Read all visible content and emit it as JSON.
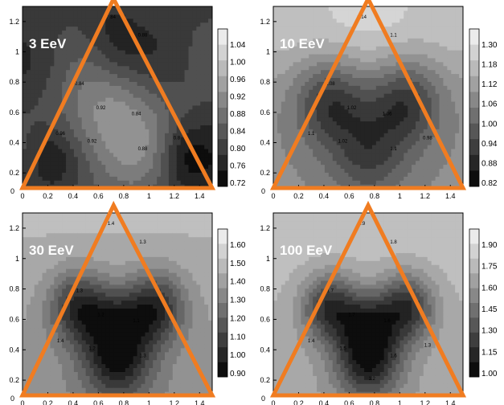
{
  "chart_data": [
    {
      "type": "heatmap",
      "label": "3 EeV",
      "xlim": [
        0,
        1.5
      ],
      "ylim": [
        0.1,
        1.3
      ],
      "xticks": [
        "0",
        "0.2",
        "0.4",
        "0.6",
        "0.8",
        "1",
        "1.2",
        "1.4"
      ],
      "yticks": [
        "0.2",
        "0.4",
        "0.6",
        "0.8",
        "1",
        "1.2"
      ],
      "colorbar_ticks": [
        "1.04",
        "1.00",
        "0.96",
        "0.92",
        "0.88",
        "0.84",
        "0.80",
        "0.76",
        "0.72"
      ],
      "colorbar_levels": 10,
      "contour_labels": [
        "0.84",
        "0.88",
        "0.84",
        "0.92",
        "0.84",
        "0.92",
        "0.88",
        "0.96",
        "0.8"
      ],
      "triangle": [
        [
          0,
          0.1
        ],
        [
          0.72,
          1.35
        ],
        [
          1.5,
          0.1
        ]
      ],
      "grid": false
    },
    {
      "type": "heatmap",
      "label": "10 EeV",
      "xlim": [
        0,
        1.5
      ],
      "ylim": [
        0.1,
        1.3
      ],
      "xticks": [
        "0",
        "0.2",
        "0.4",
        "0.6",
        "0.8",
        "1",
        "1.2",
        "1.4"
      ],
      "yticks": [
        "0.2",
        "0.4",
        "0.6",
        "0.8",
        "1",
        "1.2"
      ],
      "colorbar_ticks": [
        "1.30",
        "1.18",
        "1.12",
        "1.06",
        "1.00",
        "0.94",
        "0.88",
        "0.82"
      ],
      "colorbar_levels": 10,
      "contour_labels": [
        "1.14",
        "1.1",
        "1.08",
        "1.02",
        "1.06",
        "1.02",
        "1.1",
        "1.1",
        "0.98"
      ],
      "triangle": [
        [
          0,
          0.1
        ],
        [
          0.75,
          1.35
        ],
        [
          1.5,
          0.1
        ]
      ],
      "grid": false
    },
    {
      "type": "heatmap",
      "label": "30 EeV",
      "xlim": [
        0,
        1.5
      ],
      "ylim": [
        0.1,
        1.3
      ],
      "xticks": [
        "0",
        "0.2",
        "0.4",
        "0.6",
        "0.8",
        "1",
        "1.2",
        "1.4"
      ],
      "yticks": [
        "0.2",
        "0.4",
        "0.6",
        "0.8",
        "1",
        "1.2"
      ],
      "colorbar_ticks": [
        "1.60",
        "1.50",
        "1.40",
        "1.30",
        "1.20",
        "1.10",
        "1.00",
        "0.90"
      ],
      "colorbar_levels": 10,
      "contour_labels": [
        "1.4",
        "1.3",
        "1.3",
        "1.2",
        "1.1",
        "1.2",
        "1.3",
        "1.4"
      ],
      "triangle": [
        [
          0,
          0.1
        ],
        [
          0.72,
          1.35
        ],
        [
          1.5,
          0.1
        ]
      ],
      "grid": false
    },
    {
      "type": "heatmap",
      "label": "100 EeV",
      "xlim": [
        0,
        1.5
      ],
      "ylim": [
        0.1,
        1.3
      ],
      "xticks": [
        "0",
        "0.2",
        "0.4",
        "0.6",
        "0.8",
        "1",
        "1.2",
        "1.4"
      ],
      "yticks": [
        "0.2",
        "0.4",
        "0.6",
        "0.8",
        "1",
        "1.2"
      ],
      "colorbar_ticks": [
        "1.90",
        "1.75",
        "1.60",
        "1.45",
        "1.30",
        "1.15",
        "1.00"
      ],
      "colorbar_levels": 10,
      "contour_labels": [
        "1.9",
        "1.8",
        "1.7",
        "1.7",
        "1.6",
        "1.5",
        "1.6",
        "1.4",
        "1.3",
        "1.2"
      ],
      "triangle": [
        [
          0,
          0.1
        ],
        [
          0.75,
          1.35
        ],
        [
          1.5,
          0.1
        ]
      ],
      "grid": false
    }
  ],
  "colors": {
    "triangle": "#f07c21",
    "label_text": "#ffffff",
    "field_light": "#ebebeb",
    "field_dark": "#0d0d0d"
  }
}
